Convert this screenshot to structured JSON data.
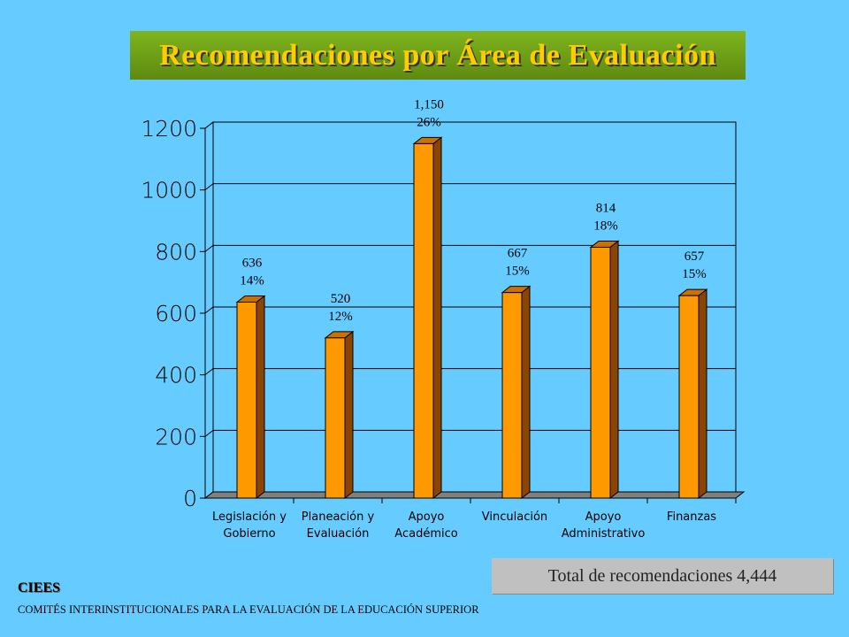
{
  "slide": {
    "title": "Recomendaciones por Área de Evaluación",
    "total_text": "Total de recomendaciones 4,444",
    "org_short": "CIEES",
    "org_long": "COMITÉS INTERINSTITUCIONALES PARA LA EVALUACIÓN DE LA EDUCACIÓN SUPERIOR"
  },
  "colors": {
    "background": "#66CCFF",
    "title_bg": "#6B9C14",
    "title_text": "#FFCC00",
    "bar_front": "#FF9900",
    "bar_side": "#8B4500",
    "bar_top": "#CC7000",
    "floor": "#808080"
  },
  "chart_data": {
    "type": "bar",
    "categories": [
      [
        "Legislación y",
        "Gobierno"
      ],
      [
        "Planeación y",
        "Evaluación"
      ],
      [
        "Apoyo",
        "Académico"
      ],
      [
        "Vinculación"
      ],
      [
        "Apoyo",
        "Administrativo"
      ],
      [
        "Finanzas"
      ]
    ],
    "values": [
      636,
      520,
      1150,
      667,
      814,
      657
    ],
    "data_labels": [
      [
        "636",
        "14%"
      ],
      [
        "520",
        "12%"
      ],
      [
        "1,150",
        "26%"
      ],
      [
        "667",
        "15%"
      ],
      [
        "814",
        "18%"
      ],
      [
        "657",
        "15%"
      ]
    ],
    "ylim": [
      0,
      1200
    ],
    "yticks": [
      "0",
      "200",
      "400",
      "600",
      "800",
      "1000",
      "1200"
    ],
    "ytick_values": [
      0,
      200,
      400,
      600,
      800,
      1000,
      1200
    ],
    "grid": true,
    "legend": false
  }
}
